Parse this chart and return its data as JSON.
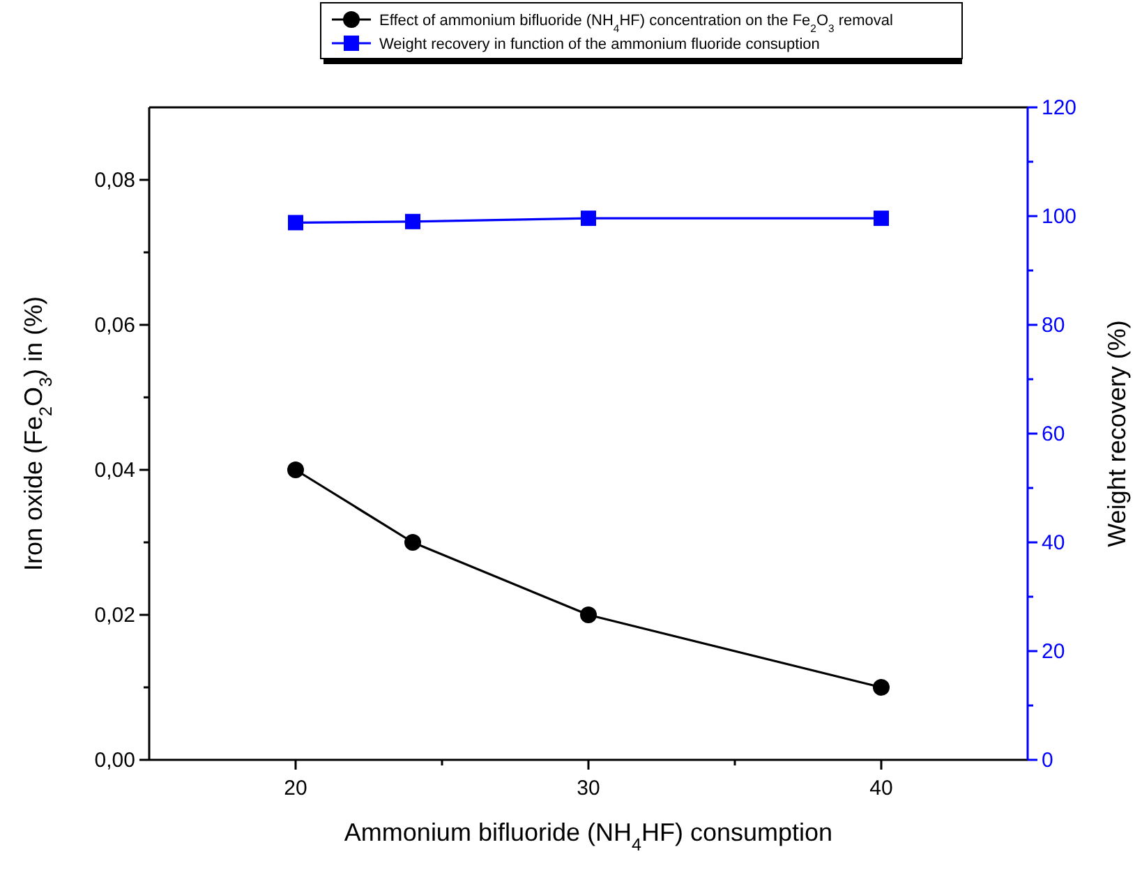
{
  "chart_data": {
    "type": "line",
    "xlabel": "Ammonium bifluoride (NH$_{4}$HF) consumption",
    "ylabel": "Iron oxide (Fe$_{2}$O$_{3}$) in (%)",
    "y2label": "Weight recovery (%)",
    "x": [
      20,
      24,
      30,
      40
    ],
    "series": [
      {
        "name": "Effect of ammonium bifluoride (NH$_{4}$HF) concentration on the Fe$_{2}$O$_{3}$ removal",
        "color": "#000000",
        "marker": "circle",
        "values": [
          0.04,
          0.03,
          0.02,
          0.01
        ]
      },
      {
        "name": "Weight recovery in function of the ammonium fluoride consuption",
        "color": "#0000ff",
        "marker": "square",
        "axis": "y2",
        "values": [
          98.8,
          99,
          99.6,
          99.6
        ]
      }
    ],
    "xlim": [
      15,
      45
    ],
    "xticks": [
      20,
      {
        "value": 25,
        "label": null
      },
      30,
      {
        "value": 35,
        "label": null
      },
      40
    ],
    "ylim": [
      0,
      0.09
    ],
    "yticks": [
      {
        "value": 0,
        "label": "0,00"
      },
      {
        "value": 0.01,
        "label": null
      },
      {
        "value": 0.02,
        "label": "0,02"
      },
      {
        "value": 0.03,
        "label": null
      },
      {
        "value": 0.04,
        "label": "0,04"
      },
      {
        "value": 0.05,
        "label": null
      },
      {
        "value": 0.06,
        "label": "0,06"
      },
      {
        "value": 0.07,
        "label": null
      },
      {
        "value": 0.08,
        "label": "0,08"
      }
    ],
    "y2lim": [
      0,
      120
    ],
    "y2ticks": [
      0,
      {
        "value": 10,
        "label": null
      },
      20,
      {
        "value": 30,
        "label": null
      },
      40,
      {
        "value": 50,
        "label": null
      },
      60,
      {
        "value": 70,
        "label": null
      },
      80,
      {
        "value": 90,
        "label": null
      },
      100,
      {
        "value": 110,
        "label": null
      },
      120
    ],
    "legend": "top",
    "grid": false
  }
}
